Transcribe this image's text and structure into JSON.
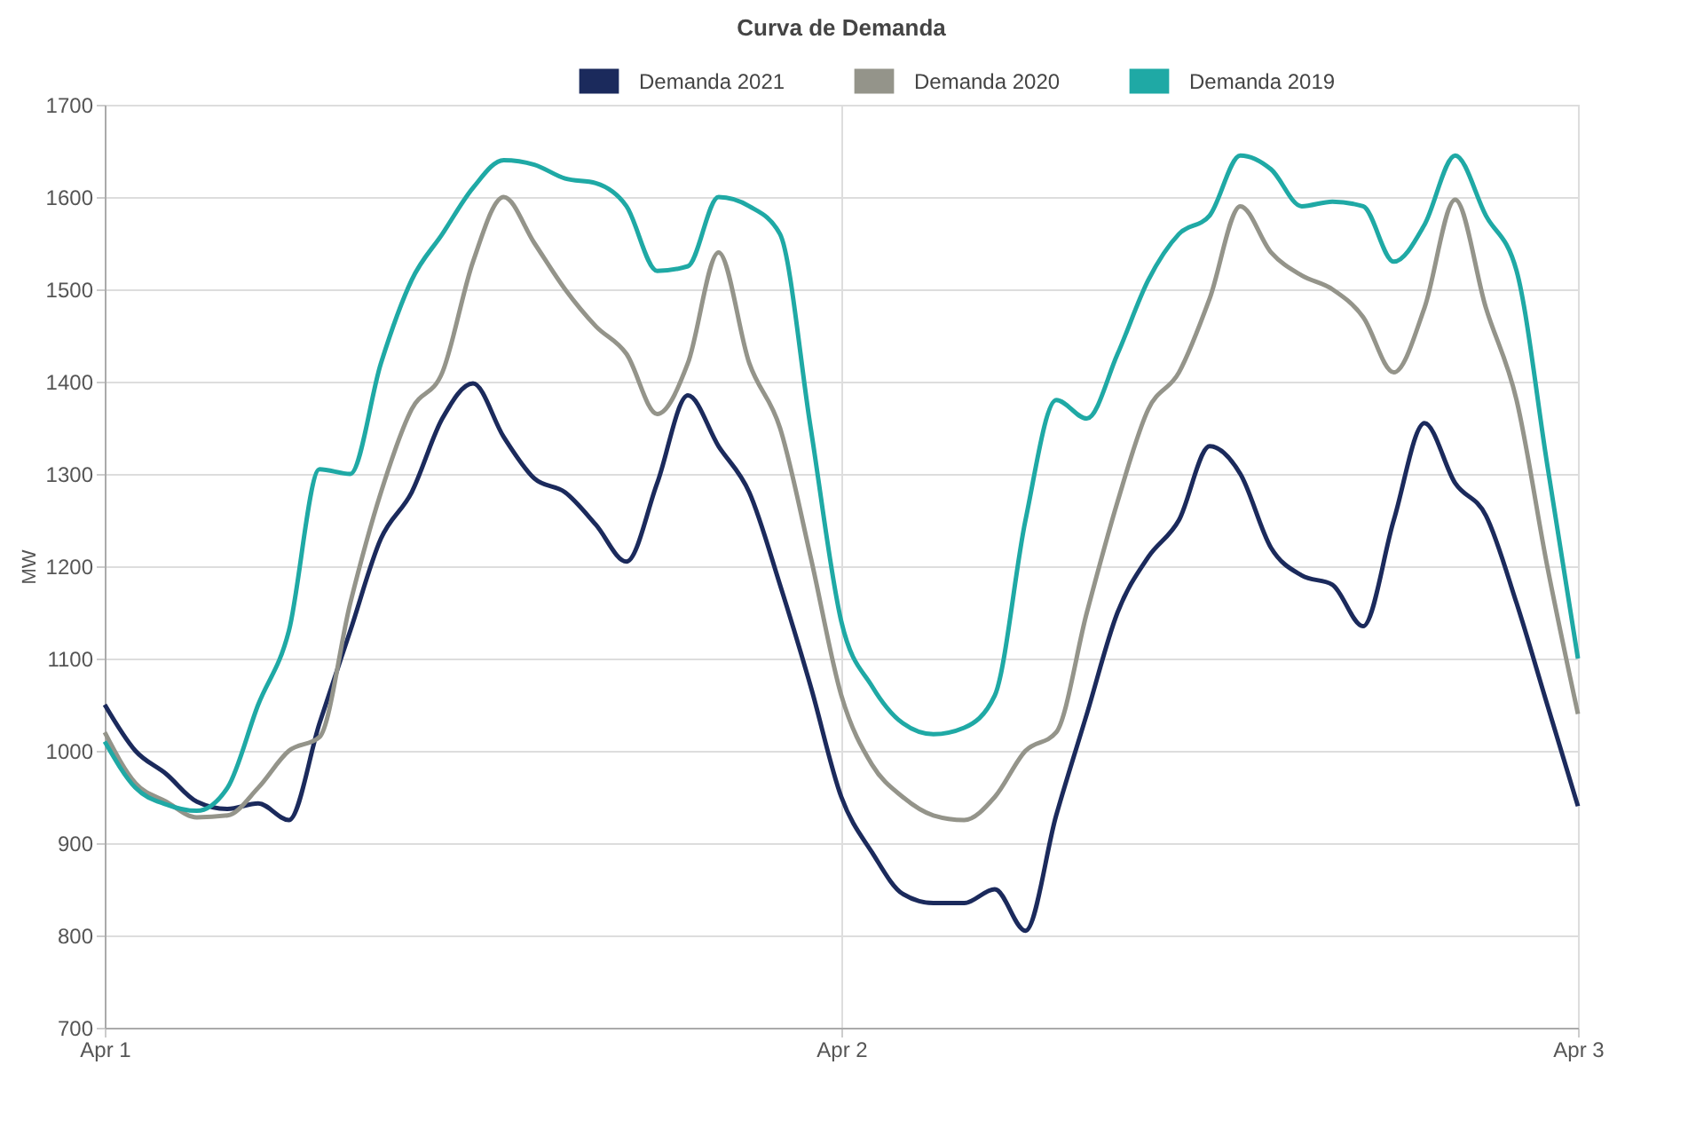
{
  "chart_data": {
    "type": "line",
    "title": "Curva de Demanda",
    "ylabel": "MW",
    "categories": [
      "Apr 1",
      null,
      null,
      null,
      null,
      null,
      null,
      null,
      null,
      null,
      null,
      null,
      null,
      null,
      null,
      null,
      null,
      null,
      null,
      null,
      null,
      null,
      null,
      null,
      "Apr 2",
      null,
      null,
      null,
      null,
      null,
      null,
      null,
      null,
      null,
      null,
      null,
      null,
      null,
      null,
      null,
      null,
      null,
      null,
      null,
      null,
      null,
      null,
      null,
      "Apr 3"
    ],
    "ylim": [
      700,
      1700
    ],
    "yticks": [
      700,
      800,
      900,
      1000,
      1100,
      1200,
      1300,
      1400,
      1500,
      1600,
      1700
    ],
    "grid": true,
    "legend": "top",
    "marker": "none",
    "line_style": "solid",
    "series": [
      {
        "name": "Demanda 2021",
        "color": "#1b2a5c",
        "values": [
          1050,
          1000,
          975,
          945,
          937,
          943,
          925,
          1030,
          1130,
          1230,
          1280,
          1360,
          1398,
          1340,
          1295,
          1280,
          1245,
          1205,
          1290,
          1385,
          1330,
          1280,
          1180,
          1070,
          950,
          890,
          845,
          835,
          835,
          850,
          805,
          930,
          1040,
          1150,
          1210,
          1250,
          1330,
          1300,
          1220,
          1190,
          1180,
          1135,
          1250,
          1355,
          1290,
          1255,
          1160,
          1050,
          940
        ]
      },
      {
        "name": "Demanda 2020",
        "color": "#94948a",
        "values": [
          1020,
          965,
          945,
          928,
          930,
          960,
          1000,
          1015,
          1160,
          1280,
          1370,
          1410,
          1530,
          1600,
          1550,
          1500,
          1460,
          1430,
          1365,
          1420,
          1540,
          1420,
          1350,
          1210,
          1060,
          985,
          950,
          930,
          925,
          950,
          1000,
          1020,
          1150,
          1270,
          1370,
          1410,
          1490,
          1590,
          1540,
          1515,
          1500,
          1470,
          1410,
          1480,
          1597,
          1480,
          1380,
          1200,
          1040
        ]
      },
      {
        "name": "Demanda 2019",
        "color": "#1fa9a5",
        "values": [
          1010,
          960,
          942,
          935,
          960,
          1050,
          1130,
          1305,
          1300,
          1420,
          1510,
          1560,
          1610,
          1640,
          1635,
          1620,
          1615,
          1590,
          1520,
          1525,
          1600,
          1590,
          1560,
          1350,
          1140,
          1070,
          1030,
          1018,
          1025,
          1060,
          1250,
          1380,
          1360,
          1430,
          1510,
          1560,
          1580,
          1645,
          1630,
          1590,
          1595,
          1590,
          1530,
          1570,
          1645,
          1580,
          1520,
          1310,
          1100
        ]
      }
    ]
  }
}
